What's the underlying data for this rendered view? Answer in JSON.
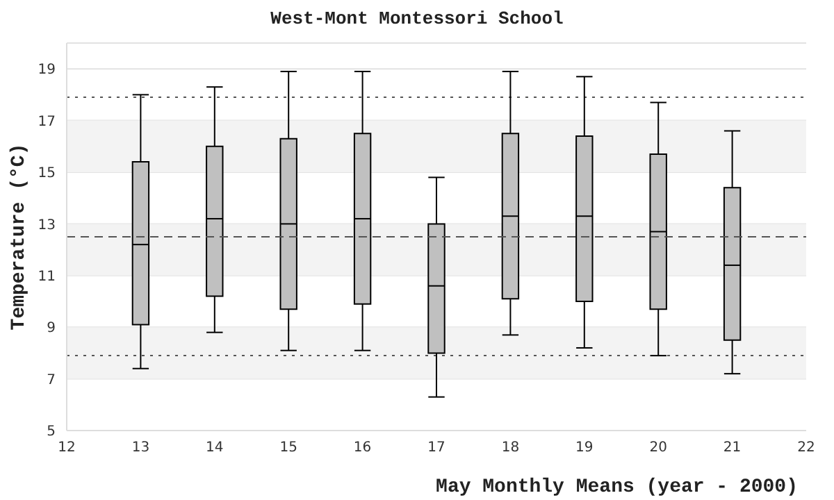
{
  "chart_data": {
    "type": "box",
    "title": "West-Mont Montessori School",
    "xlabel": "May Monthly Means (year - 2000)",
    "ylabel": "Temperature (°C)",
    "x": [
      13,
      14,
      15,
      16,
      17,
      18,
      19,
      20,
      21
    ],
    "color": "#c0c0c0",
    "boxes": [
      {
        "low": 7.4,
        "q1": 9.1,
        "median": 12.2,
        "q3": 15.4,
        "high": 18.0
      },
      {
        "low": 8.8,
        "q1": 10.2,
        "median": 13.2,
        "q3": 16.0,
        "high": 18.3
      },
      {
        "low": 8.1,
        "q1": 9.7,
        "median": 13.0,
        "q3": 16.3,
        "high": 18.9
      },
      {
        "low": 8.1,
        "q1": 9.9,
        "median": 13.2,
        "q3": 16.5,
        "high": 18.9
      },
      {
        "low": 6.3,
        "q1": 8.0,
        "median": 10.6,
        "q3": 13.0,
        "high": 14.8
      },
      {
        "low": 8.7,
        "q1": 10.1,
        "median": 13.3,
        "q3": 16.5,
        "high": 18.9
      },
      {
        "low": 8.2,
        "q1": 10.0,
        "median": 13.3,
        "q3": 16.4,
        "high": 18.7
      },
      {
        "low": 7.9,
        "q1": 9.7,
        "median": 12.7,
        "q3": 15.7,
        "high": 17.7
      },
      {
        "low": 7.2,
        "q1": 8.5,
        "median": 11.4,
        "q3": 14.4,
        "high": 16.6
      }
    ],
    "xlim": [
      12,
      22
    ],
    "xticks": [
      12,
      13,
      14,
      15,
      16,
      17,
      18,
      19,
      20,
      21,
      22
    ],
    "ylim": [
      5,
      20
    ],
    "yticks": [
      5,
      7,
      9,
      11,
      13,
      15,
      17,
      19
    ],
    "grid": "y",
    "ref_lines": [
      {
        "axis": "y",
        "value": 17.9,
        "line_style": "dotted",
        "color": "#555555"
      },
      {
        "axis": "y",
        "value": 12.5,
        "line_style": "dashed",
        "color": "#555555"
      },
      {
        "axis": "y",
        "value": 7.9,
        "line_style": "dotted",
        "color": "#555555"
      }
    ],
    "bands": [
      {
        "axis": "y",
        "from": 7,
        "to": 9,
        "color": "#f3f3f3"
      },
      {
        "axis": "y",
        "from": 11,
        "to": 13,
        "color": "#f3f3f3"
      },
      {
        "axis": "y",
        "from": 15,
        "to": 17,
        "color": "#f3f3f3"
      }
    ]
  }
}
